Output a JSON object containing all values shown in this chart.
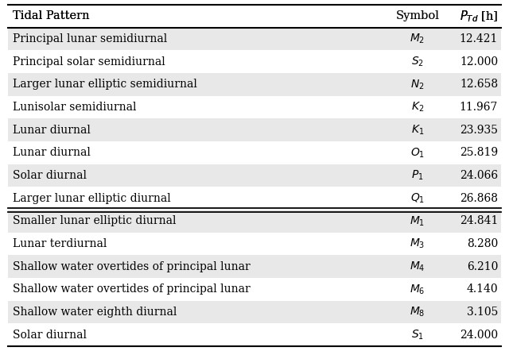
{
  "header": [
    "Tidal Pattern",
    "Symbol",
    "$P_{Td}$ [h]"
  ],
  "rows_top": [
    [
      "Principal lunar semidiurnal",
      "$M_2$",
      "12.421"
    ],
    [
      "Principal solar semidiurnal",
      "$S_2$",
      "12.000"
    ],
    [
      "Larger lunar elliptic semidiurnal",
      "$N_2$",
      "12.658"
    ],
    [
      "Lunisolar semidiurnal",
      "$K_2$",
      "11.967"
    ],
    [
      "Lunar diurnal",
      "$K_1$",
      "23.935"
    ],
    [
      "Lunar diurnal",
      "$O_1$",
      "25.819"
    ],
    [
      "Solar diurnal",
      "$P_1$",
      "24.066"
    ],
    [
      "Larger lunar elliptic diurnal",
      "$Q_1$",
      "26.868"
    ]
  ],
  "rows_bottom": [
    [
      "Smaller lunar elliptic diurnal",
      "$M_1$",
      "24.841"
    ],
    [
      "Lunar terdiurnal",
      "$M_3$",
      "8.280"
    ],
    [
      "Shallow water overtides of principal lunar",
      "$M_4$",
      "6.210"
    ],
    [
      "Shallow water overtides of principal lunar",
      "$M_6$",
      "4.140"
    ],
    [
      "Shallow water eighth diurnal",
      "$M_8$",
      "3.105"
    ],
    [
      "Solar diurnal",
      "$S_1$",
      "24.000"
    ]
  ],
  "bg_light": "#e8e8e8",
  "bg_white": "#ffffff",
  "fig_bg": "#ffffff",
  "fontsize": 10.0,
  "header_fontsize": 10.5
}
